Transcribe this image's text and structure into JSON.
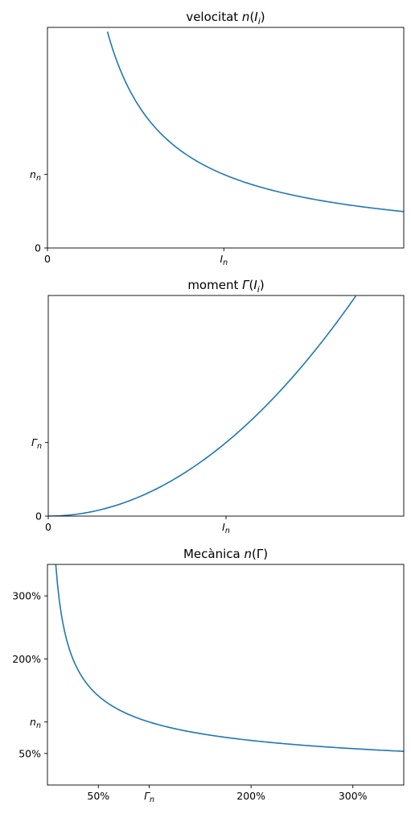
{
  "chart_data": [
    {
      "type": "line",
      "title": {
        "prefix": "velocitat ",
        "sym": "n",
        "open": "(",
        "var": "I",
        "sub": "i",
        "close": ")"
      },
      "xlim": [
        0,
        2.02
      ],
      "ylim": [
        0,
        3.0
      ],
      "xticks": [
        {
          "value": 0,
          "text": "0"
        },
        {
          "value": 1,
          "sym": "I",
          "sub": "n"
        }
      ],
      "yticks": [
        {
          "value": 0,
          "text": "0"
        },
        {
          "value": 1,
          "sym": "n",
          "sub": "n"
        }
      ],
      "series": [
        {
          "function": "inverse",
          "x_from": 0.34,
          "x_to": 2.02,
          "samples": 140,
          "color": "#1f77b4"
        }
      ]
    },
    {
      "type": "line",
      "title": {
        "prefix": "moment ",
        "sym": "Γ",
        "open": "(",
        "var": "I",
        "sub": "i",
        "close": ")"
      },
      "xlim": [
        0,
        2.0
      ],
      "ylim": [
        0,
        3.0
      ],
      "xticks": [
        {
          "value": 0,
          "text": "0"
        },
        {
          "value": 1,
          "sym": "I",
          "sub": "n"
        }
      ],
      "yticks": [
        {
          "value": 0,
          "text": "0"
        },
        {
          "value": 1,
          "sym": "Γ",
          "sub": "n"
        }
      ],
      "series": [
        {
          "function": "square",
          "x_from": 0,
          "x_to": 1.73,
          "samples": 140,
          "color": "#1f77b4"
        }
      ]
    },
    {
      "type": "line",
      "title": {
        "prefix": "Mecànica ",
        "sym": "n",
        "open": "(",
        "var": "Γ",
        "sub": "",
        "close": ")"
      },
      "xlim": [
        0.0,
        3.5
      ],
      "ylim": [
        0.0,
        3.5
      ],
      "xticks": [
        {
          "value": 0.5,
          "text": "50%"
        },
        {
          "value": 1.0,
          "sym": "Γ",
          "sub": "n"
        },
        {
          "value": 2.0,
          "text": "200%"
        },
        {
          "value": 3.0,
          "text": "300%"
        }
      ],
      "yticks": [
        {
          "value": 0.5,
          "text": "50%"
        },
        {
          "value": 1.0,
          "sym": "n",
          "sub": "n"
        },
        {
          "value": 2.0,
          "text": "200%"
        },
        {
          "value": 3.0,
          "text": "300%"
        }
      ],
      "series": [
        {
          "function": "inverse_sqrt",
          "x_from": 0.082,
          "x_to": 3.5,
          "samples": 200,
          "color": "#1f77b4"
        }
      ]
    }
  ]
}
